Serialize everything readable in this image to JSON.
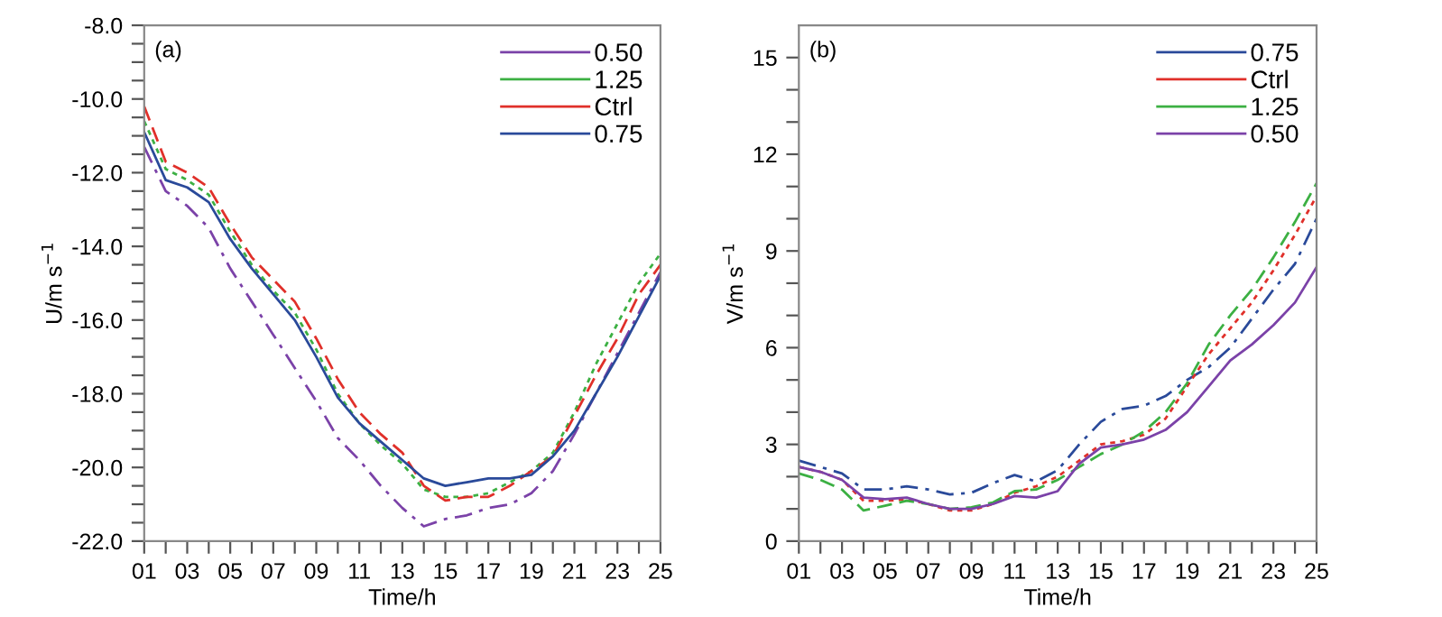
{
  "chart_data": [
    {
      "type": "line",
      "xlabel": "Time/h",
      "ylabel": "U/m s$^{−1}$",
      "annotations": [
        "(a)"
      ],
      "legend": "top right",
      "grid": false,
      "x": [
        1,
        2,
        3,
        4,
        5,
        6,
        7,
        8,
        9,
        10,
        11,
        12,
        13,
        14,
        15,
        16,
        17,
        18,
        19,
        20,
        21,
        22,
        23,
        24,
        25
      ],
      "xlim": [
        1,
        25
      ],
      "xticks": [
        {
          "value": 1,
          "label": "01"
        },
        {
          "value": 2,
          "label": null
        },
        {
          "value": 3,
          "label": "03"
        },
        {
          "value": 4,
          "label": null
        },
        {
          "value": 5,
          "label": "05"
        },
        {
          "value": 6,
          "label": null
        },
        {
          "value": 7,
          "label": "07"
        },
        {
          "value": 8,
          "label": null
        },
        {
          "value": 9,
          "label": "09"
        },
        {
          "value": 10,
          "label": null
        },
        {
          "value": 11,
          "label": "11"
        },
        {
          "value": 12,
          "label": null
        },
        {
          "value": 13,
          "label": "13"
        },
        {
          "value": 14,
          "label": null
        },
        {
          "value": 15,
          "label": "15"
        },
        {
          "value": 16,
          "label": null
        },
        {
          "value": 17,
          "label": "17"
        },
        {
          "value": 18,
          "label": null
        },
        {
          "value": 19,
          "label": "19"
        },
        {
          "value": 20,
          "label": null
        },
        {
          "value": 21,
          "label": "21"
        },
        {
          "value": 22,
          "label": null
        },
        {
          "value": 23,
          "label": "23"
        },
        {
          "value": 24,
          "label": null
        },
        {
          "value": 25,
          "label": "25"
        }
      ],
      "ylim": [
        -22,
        -8
      ],
      "yticks": [
        {
          "value": -22,
          "label": "-22.0"
        },
        {
          "value": -21.5,
          "label": null
        },
        {
          "value": -21,
          "label": null
        },
        {
          "value": -20.5,
          "label": null
        },
        {
          "value": -20,
          "label": "-20.0"
        },
        {
          "value": -19.5,
          "label": null
        },
        {
          "value": -19,
          "label": null
        },
        {
          "value": -18.5,
          "label": null
        },
        {
          "value": -18,
          "label": "-18.0"
        },
        {
          "value": -17.5,
          "label": null
        },
        {
          "value": -17,
          "label": null
        },
        {
          "value": -16.5,
          "label": null
        },
        {
          "value": -16,
          "label": "-16.0"
        },
        {
          "value": -15.5,
          "label": null
        },
        {
          "value": -15,
          "label": null
        },
        {
          "value": -14.5,
          "label": null
        },
        {
          "value": -14,
          "label": "-14.0"
        },
        {
          "value": -13.5,
          "label": null
        },
        {
          "value": -13,
          "label": null
        },
        {
          "value": -12.5,
          "label": null
        },
        {
          "value": -12,
          "label": "-12.0"
        },
        {
          "value": -11.5,
          "label": null
        },
        {
          "value": -11,
          "label": null
        },
        {
          "value": -10.5,
          "label": null
        },
        {
          "value": -10,
          "label": "-10.0"
        },
        {
          "value": -9.5,
          "label": null
        },
        {
          "value": -9,
          "label": null
        },
        {
          "value": -8.5,
          "label": null
        },
        {
          "value": -8,
          "label": "-8.0"
        }
      ],
      "series": [
        {
          "name": "0.50",
          "color": "#7b42a8",
          "line_style": "dashdot",
          "values": [
            -11.3,
            -12.5,
            -12.9,
            -13.5,
            -14.6,
            -15.5,
            -16.4,
            -17.3,
            -18.2,
            -19.2,
            -19.8,
            -20.5,
            -21.1,
            -21.6,
            -21.4,
            -21.3,
            -21.1,
            -21.0,
            -20.7,
            -20.1,
            -19.1,
            -18.0,
            -16.9,
            -15.8,
            -14.7
          ]
        },
        {
          "name": "1.25",
          "color": "#3cb043",
          "line_style": "dotted",
          "values": [
            -10.6,
            -11.9,
            -12.2,
            -12.6,
            -13.6,
            -14.5,
            -15.2,
            -15.8,
            -16.8,
            -18.0,
            -18.8,
            -19.4,
            -19.9,
            -20.6,
            -20.8,
            -20.8,
            -20.7,
            -20.4,
            -20.1,
            -19.6,
            -18.5,
            -17.2,
            -16.1,
            -15.0,
            -14.2
          ]
        },
        {
          "name": "Ctrl",
          "color": "#e0302a",
          "line_style": "dashed",
          "values": [
            -10.2,
            -11.7,
            -12.0,
            -12.4,
            -13.4,
            -14.3,
            -14.9,
            -15.5,
            -16.5,
            -17.6,
            -18.5,
            -19.1,
            -19.6,
            -20.5,
            -20.9,
            -20.8,
            -20.8,
            -20.5,
            -20.1,
            -19.7,
            -18.6,
            -17.5,
            -16.5,
            -15.3,
            -14.5
          ]
        },
        {
          "name": "0.75",
          "color": "#2a4a9a",
          "line_style": "solid",
          "values": [
            -10.9,
            -12.2,
            -12.4,
            -12.8,
            -13.8,
            -14.6,
            -15.3,
            -16.0,
            -17.0,
            -18.1,
            -18.8,
            -19.3,
            -19.8,
            -20.3,
            -20.5,
            -20.4,
            -20.3,
            -20.3,
            -20.2,
            -19.7,
            -19.0,
            -18.0,
            -17.0,
            -15.9,
            -14.8
          ]
        }
      ]
    },
    {
      "type": "line",
      "xlabel": "Time/h",
      "ylabel": "V/m s$^{−1}$",
      "annotations": [
        "(b)"
      ],
      "legend": "top right",
      "grid": false,
      "x": [
        1,
        2,
        3,
        4,
        5,
        6,
        7,
        8,
        9,
        10,
        11,
        12,
        13,
        14,
        15,
        16,
        17,
        18,
        19,
        20,
        21,
        22,
        23,
        24,
        25
      ],
      "xlim": [
        1,
        25
      ],
      "xticks": [
        {
          "value": 1,
          "label": "01"
        },
        {
          "value": 2,
          "label": null
        },
        {
          "value": 3,
          "label": "03"
        },
        {
          "value": 4,
          "label": null
        },
        {
          "value": 5,
          "label": "05"
        },
        {
          "value": 6,
          "label": null
        },
        {
          "value": 7,
          "label": "07"
        },
        {
          "value": 8,
          "label": null
        },
        {
          "value": 9,
          "label": "09"
        },
        {
          "value": 10,
          "label": null
        },
        {
          "value": 11,
          "label": "11"
        },
        {
          "value": 12,
          "label": null
        },
        {
          "value": 13,
          "label": "13"
        },
        {
          "value": 14,
          "label": null
        },
        {
          "value": 15,
          "label": "15"
        },
        {
          "value": 16,
          "label": null
        },
        {
          "value": 17,
          "label": "17"
        },
        {
          "value": 18,
          "label": null
        },
        {
          "value": 19,
          "label": "19"
        },
        {
          "value": 20,
          "label": null
        },
        {
          "value": 21,
          "label": "21"
        },
        {
          "value": 22,
          "label": null
        },
        {
          "value": 23,
          "label": "23"
        },
        {
          "value": 24,
          "label": null
        },
        {
          "value": 25,
          "label": "25"
        }
      ],
      "ylim": [
        0,
        16
      ],
      "yticks": [
        0,
        {
          "value": 1,
          "label": null
        },
        {
          "value": 2,
          "label": null
        },
        3,
        {
          "value": 4,
          "label": null
        },
        {
          "value": 5,
          "label": null
        },
        6,
        {
          "value": 7,
          "label": null
        },
        {
          "value": 8,
          "label": null
        },
        9,
        {
          "value": 10,
          "label": null
        },
        {
          "value": 11,
          "label": null
        },
        12,
        {
          "value": 13,
          "label": null
        },
        {
          "value": 14,
          "label": null
        },
        15
      ],
      "series": [
        {
          "name": "0.75",
          "color": "#2a4a9a",
          "line_style": "dashdot",
          "values": [
            2.5,
            2.3,
            2.1,
            1.6,
            1.6,
            1.7,
            1.6,
            1.45,
            1.5,
            1.8,
            2.05,
            1.85,
            2.2,
            3.0,
            3.7,
            4.1,
            4.2,
            4.5,
            5.0,
            5.4,
            6.0,
            6.9,
            7.8,
            8.6,
            10.0
          ]
        },
        {
          "name": "Ctrl",
          "color": "#e0302a",
          "line_style": "dotted",
          "values": [
            2.3,
            2.15,
            1.9,
            1.25,
            1.25,
            1.3,
            1.15,
            0.95,
            0.95,
            1.15,
            1.5,
            1.7,
            2.0,
            2.5,
            3.0,
            3.1,
            3.3,
            3.8,
            4.8,
            5.8,
            6.6,
            7.4,
            8.4,
            9.5,
            10.7
          ]
        },
        {
          "name": "1.25",
          "color": "#3cb043",
          "line_style": "dashed",
          "values": [
            2.1,
            1.9,
            1.6,
            0.95,
            1.1,
            1.25,
            1.15,
            1.0,
            1.05,
            1.2,
            1.55,
            1.6,
            1.9,
            2.3,
            2.7,
            3.0,
            3.4,
            4.0,
            4.9,
            6.1,
            7.0,
            7.8,
            8.8,
            9.9,
            11.1
          ]
        },
        {
          "name": "0.50",
          "color": "#7b42a8",
          "line_style": "solid",
          "values": [
            2.3,
            2.15,
            1.9,
            1.35,
            1.3,
            1.35,
            1.15,
            1.0,
            1.0,
            1.15,
            1.4,
            1.35,
            1.55,
            2.4,
            2.9,
            3.0,
            3.15,
            3.45,
            4.0,
            4.8,
            5.6,
            6.1,
            6.7,
            7.4,
            8.5
          ]
        }
      ]
    }
  ]
}
